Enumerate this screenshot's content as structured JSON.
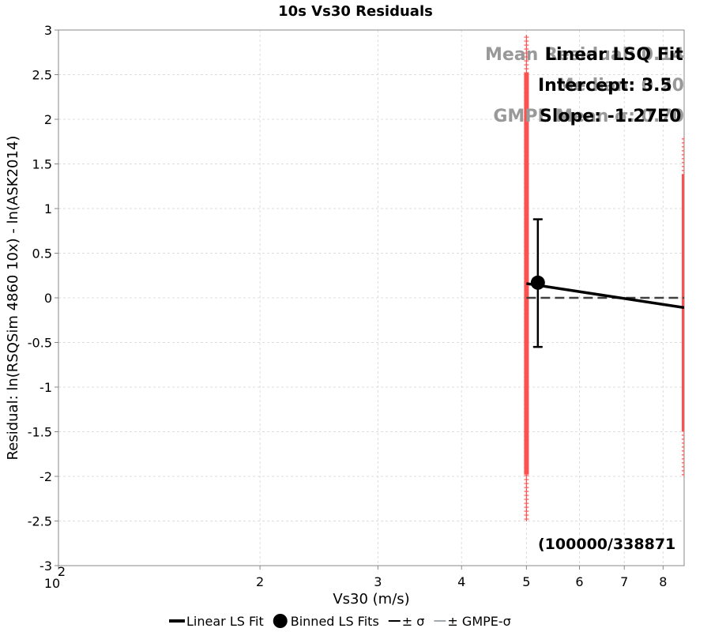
{
  "chart_data": {
    "type": "scatter",
    "title": "10s Vs30 Residuals",
    "xlabel": "Vs30 (m/s)",
    "ylabel": "Residual: ln(RSQSim 4860 10x) - ln(ASK2014)",
    "x_scale": "log",
    "xlim": [
      100,
      860
    ],
    "ylim": [
      -3,
      3
    ],
    "grid": true,
    "x_ticks": [
      {
        "value": 100,
        "label": "10",
        "sup": "2"
      },
      {
        "value": 200,
        "label": "2"
      },
      {
        "value": 300,
        "label": "3"
      },
      {
        "value": 400,
        "label": "4"
      },
      {
        "value": 500,
        "label": "5"
      },
      {
        "value": 600,
        "label": "6"
      },
      {
        "value": 700,
        "label": "7"
      },
      {
        "value": 800,
        "label": "8"
      }
    ],
    "y_ticks": [
      {
        "value": 3,
        "label": "3"
      },
      {
        "value": 2.5,
        "label": "2.5"
      },
      {
        "value": 2,
        "label": "2"
      },
      {
        "value": 1.5,
        "label": "1.5"
      },
      {
        "value": 1,
        "label": "1"
      },
      {
        "value": 0.5,
        "label": "0.5"
      },
      {
        "value": 0,
        "label": "0"
      },
      {
        "value": -0.5,
        "label": "-0.5"
      },
      {
        "value": -1,
        "label": "-1"
      },
      {
        "value": -1.5,
        "label": "-1.5"
      },
      {
        "value": -2,
        "label": "-2"
      },
      {
        "value": -2.5,
        "label": "-2.5"
      },
      {
        "value": -3,
        "label": "-3"
      }
    ],
    "series": [
      {
        "kind": "residual-scatter",
        "color": "#ff5050",
        "columns": [
          {
            "x": 500,
            "ymin": -2.48,
            "ymax": 2.92
          },
          {
            "x": 860,
            "ymin": -2.0,
            "ymax": 1.78
          }
        ]
      },
      {
        "name": "Linear LS Fit",
        "kind": "line",
        "color": "#000000",
        "x": [
          500,
          860
        ],
        "y": [
          0.16,
          -0.11
        ]
      },
      {
        "name": "Binned LS Fits",
        "kind": "point",
        "color": "#000000",
        "x": [
          520
        ],
        "y": [
          0.17
        ],
        "sigma_upper": [
          0.88
        ],
        "sigma_lower": [
          -0.55
        ]
      },
      {
        "kind": "zero-reference",
        "color": "#404040",
        "x": [
          500,
          860
        ],
        "y": [
          0,
          0
        ]
      }
    ],
    "legend": {
      "placement": "bottom-center",
      "items": [
        {
          "label": "Linear LS Fit",
          "marker": "line",
          "color": "#000000"
        },
        {
          "label": "Binned LS Fits",
          "marker": "dot",
          "color": "#000000"
        },
        {
          "label": "± σ",
          "marker": "thin-line",
          "color": "#000000"
        },
        {
          "label": "± GMPE-σ",
          "marker": "thin-line",
          "color": "#a0a8b0"
        }
      ]
    },
    "annotations": {
      "overlay_texts": [
        {
          "text": "Mean Residual: 0.14",
          "color": "#999999",
          "row": 1,
          "align": "right"
        },
        {
          "text": "Median: 0.20",
          "color": "#999999",
          "row": 2,
          "align": "right"
        },
        {
          "text": "GMPE Mean σ: 0.70",
          "color": "#999999",
          "row": 3,
          "align": "right"
        },
        {
          "text": "Linear LSQ Fit",
          "color": "#000000",
          "row": 1,
          "align": "left"
        },
        {
          "text": "Intercept: 3.5",
          "color": "#000000",
          "row": 2,
          "align": "left"
        },
        {
          "text": "Slope: -1.27E0",
          "color": "#000000",
          "row": 3,
          "align": "left"
        }
      ],
      "count": "(100000/338871"
    }
  }
}
